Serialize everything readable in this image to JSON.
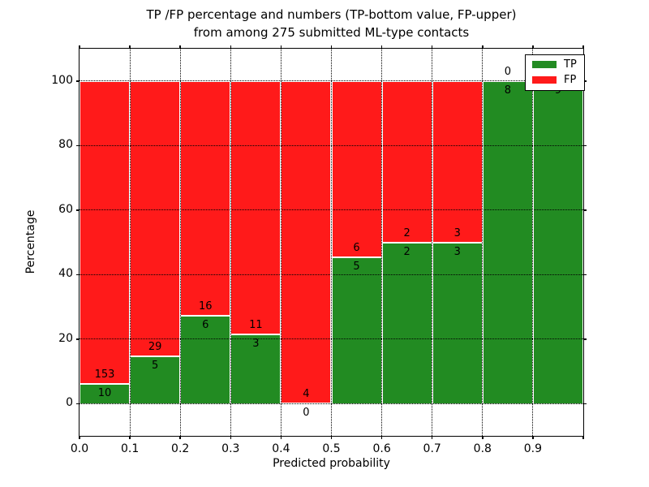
{
  "figure": {
    "title_line1": "TP /FP percentage and numbers (TP-bottom value, FP-upper)",
    "title_line2": "from among 275 submitted ML-type contacts"
  },
  "colors": {
    "tp": "#228B22",
    "fp": "#FF1A1A",
    "background": "#FFFFFF",
    "grid": "#000000",
    "bar_edge": "#FFFFFF",
    "text": "#000000"
  },
  "chart_data": {
    "type": "bar",
    "stacked": true,
    "normalized_to_percent": true,
    "title": "TP /FP percentage and numbers (TP-bottom value, FP-upper)\nfrom among 275 submitted ML-type contacts",
    "xlabel": "Predicted probability",
    "ylabel": "Percentage",
    "xlim": [
      0.0,
      1.0
    ],
    "ylim": [
      -10,
      110
    ],
    "x_tick_labels": [
      "0.0",
      "0.1",
      "0.2",
      "0.3",
      "0.4",
      "0.5",
      "0.6",
      "0.7",
      "0.8",
      "0.9"
    ],
    "y_ticks": [
      0,
      20,
      40,
      60,
      80,
      100
    ],
    "grid": "dotted",
    "total_contacts": 275,
    "legend": {
      "position": "upper right",
      "entries": [
        {
          "label": "TP",
          "color": "#228B22"
        },
        {
          "label": "FP",
          "color": "#FF1A1A"
        }
      ]
    },
    "bins": [
      {
        "x_range": [
          0.0,
          0.1
        ],
        "tp": 10,
        "fp": 153,
        "tp_pct": 6.1
      },
      {
        "x_range": [
          0.1,
          0.2
        ],
        "tp": 5,
        "fp": 29,
        "tp_pct": 14.7
      },
      {
        "x_range": [
          0.2,
          0.3
        ],
        "tp": 6,
        "fp": 16,
        "tp_pct": 27.3
      },
      {
        "x_range": [
          0.3,
          0.4
        ],
        "tp": 3,
        "fp": 11,
        "tp_pct": 21.4
      },
      {
        "x_range": [
          0.4,
          0.5
        ],
        "tp": 0,
        "fp": 4,
        "tp_pct": 0.0
      },
      {
        "x_range": [
          0.5,
          0.6
        ],
        "tp": 5,
        "fp": 6,
        "tp_pct": 45.5
      },
      {
        "x_range": [
          0.6,
          0.7
        ],
        "tp": 2,
        "fp": 2,
        "tp_pct": 50.0
      },
      {
        "x_range": [
          0.7,
          0.8
        ],
        "tp": 3,
        "fp": 3,
        "tp_pct": 50.0
      },
      {
        "x_range": [
          0.8,
          0.9
        ],
        "tp": 8,
        "fp": 0,
        "tp_pct": 100.0
      },
      {
        "x_range": [
          0.9,
          1.0
        ],
        "tp": 9,
        "fp": 0,
        "tp_pct": 100.0
      }
    ]
  }
}
